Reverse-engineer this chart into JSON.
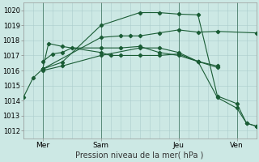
{
  "xlabel": "Pression niveau de la mer( hPa )",
  "background_color": "#cce8e4",
  "grid_color": "#aacccc",
  "line_color": "#1a5c35",
  "vline_color": "#5a8a7a",
  "ylim": [
    1011.5,
    1020.5
  ],
  "yticks": [
    1012,
    1013,
    1014,
    1015,
    1016,
    1017,
    1018,
    1019,
    1020
  ],
  "xlim": [
    0,
    12
  ],
  "xtick_labels": [
    "Mer",
    "Sam",
    "Jeu",
    "Ven"
  ],
  "xtick_positions": [
    1,
    4,
    8,
    11
  ],
  "vline_positions": [
    1,
    4,
    8,
    11
  ],
  "lines": [
    {
      "x": [
        0,
        0.5,
        1,
        4,
        5,
        5.5,
        6,
        7,
        8,
        9,
        10,
        12
      ],
      "y": [
        1014.2,
        1015.5,
        1016.1,
        1018.2,
        1018.3,
        1018.3,
        1018.3,
        1018.5,
        1018.7,
        1018.55,
        1018.6,
        1018.5
      ]
    },
    {
      "x": [
        1,
        1.3,
        2,
        4,
        4.5,
        5,
        6,
        7,
        8,
        9,
        10
      ],
      "y": [
        1016.1,
        1017.8,
        1017.6,
        1017.2,
        1017.0,
        1017.0,
        1017.0,
        1017.0,
        1017.1,
        1016.6,
        1016.3
      ]
    },
    {
      "x": [
        1,
        1.5,
        2,
        2.5,
        4,
        5,
        6,
        7,
        8,
        9,
        10
      ],
      "y": [
        1016.6,
        1017.1,
        1017.2,
        1017.5,
        1017.5,
        1017.5,
        1017.6,
        1017.2,
        1017.0,
        1016.6,
        1016.2
      ]
    },
    {
      "x": [
        1,
        2,
        4,
        6,
        7,
        8,
        9,
        10,
        11,
        11.5,
        12
      ],
      "y": [
        1016.1,
        1016.55,
        1019.0,
        1019.85,
        1019.85,
        1019.75,
        1019.7,
        1014.3,
        1013.8,
        1012.5,
        1012.3
      ]
    },
    {
      "x": [
        1,
        2,
        4,
        6,
        7,
        8,
        9,
        10,
        11,
        11.5,
        12
      ],
      "y": [
        1016.0,
        1016.3,
        1017.0,
        1017.5,
        1017.5,
        1017.2,
        1016.6,
        1014.2,
        1013.5,
        1012.5,
        1012.3
      ]
    }
  ]
}
